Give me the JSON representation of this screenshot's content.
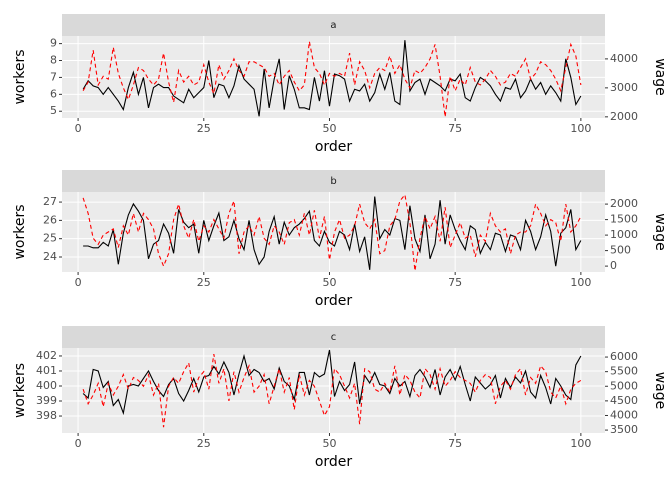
{
  "chart_data": [
    {
      "type": "line",
      "strip": "a",
      "xlabel": "order",
      "grid": true,
      "xlim": [
        -3.2,
        104.8
      ],
      "xticks": [
        0,
        25,
        50,
        75,
        100
      ],
      "ylim": [
        4.6,
        9.45
      ],
      "yticks": [
        5,
        6,
        7,
        8,
        9
      ],
      "y2lim": [
        1960,
        4790
      ],
      "y2ticks": [
        2000,
        3000,
        4000
      ],
      "x": [
        1,
        2,
        3,
        4,
        5,
        6,
        7,
        8,
        9,
        10,
        11,
        12,
        13,
        14,
        15,
        16,
        17,
        18,
        19,
        20,
        21,
        22,
        23,
        24,
        25,
        26,
        27,
        28,
        29,
        30,
        31,
        32,
        33,
        34,
        35,
        36,
        37,
        38,
        39,
        40,
        41,
        42,
        43,
        44,
        45,
        46,
        47,
        48,
        49,
        50,
        51,
        52,
        53,
        54,
        55,
        56,
        57,
        58,
        59,
        60,
        61,
        62,
        63,
        64,
        65,
        66,
        67,
        68,
        69,
        70,
        71,
        72,
        73,
        74,
        75,
        76,
        77,
        78,
        79,
        80,
        81,
        82,
        83,
        84,
        85,
        86,
        87,
        88,
        89,
        90,
        91,
        92,
        93,
        94,
        95,
        96,
        97,
        98,
        99,
        100
      ],
      "series": [
        {
          "name": "workers",
          "color": "#000000",
          "linetype": "solid",
          "values": [
            6.3,
            6.8,
            6.5,
            6.4,
            6.0,
            6.4,
            6.0,
            5.6,
            5.1,
            6.4,
            7.3,
            6.0,
            7.0,
            5.2,
            6.4,
            6.6,
            6.4,
            6.4,
            5.9,
            5.7,
            5.5,
            6.3,
            5.8,
            6.1,
            6.4,
            8.0,
            5.8,
            6.6,
            6.5,
            5.8,
            6.5,
            7.7,
            6.9,
            6.6,
            6.3,
            4.7,
            7.5,
            5.2,
            6.9,
            8.1,
            5.1,
            7.1,
            6.3,
            5.2,
            5.2,
            5.1,
            7.0,
            5.6,
            7.4,
            5.3,
            7.2,
            7.1,
            6.9,
            5.6,
            6.3,
            6.2,
            6.6,
            5.6,
            6.1,
            7.2,
            6.3,
            7.3,
            5.6,
            5.4,
            9.2,
            6.2,
            6.7,
            6.9,
            6.0,
            6.9,
            6.7,
            6.5,
            6.2,
            6.9,
            6.8,
            7.2,
            5.8,
            5.6,
            6.4,
            7.0,
            6.8,
            6.5,
            6.0,
            5.6,
            6.4,
            6.3,
            6.9,
            5.8,
            6.2,
            6.9,
            6.3,
            6.7,
            6.0,
            6.5,
            6.1,
            5.6,
            8.1,
            7.0,
            5.4,
            5.9
          ]
        },
        {
          "name": "wage",
          "color": "#ff0000",
          "linetype": "dashed",
          "axis": "y2",
          "values": [
            2900,
            3200,
            4300,
            3100,
            3400,
            3300,
            4400,
            3500,
            3000,
            2600,
            3100,
            3700,
            3600,
            3300,
            3100,
            3300,
            4200,
            3200,
            2500,
            3600,
            3200,
            3400,
            3100,
            3200,
            3800,
            3200,
            2800,
            3800,
            3300,
            3600,
            4000,
            3600,
            3400,
            3900,
            3900,
            3800,
            3700,
            3400,
            3500,
            3100,
            3400,
            3600,
            3200,
            2900,
            3100,
            4600,
            3700,
            3500,
            3100,
            3500,
            3400,
            3500,
            3400,
            4200,
            3100,
            3900,
            3600,
            3000,
            3500,
            3700,
            3600,
            4100,
            3500,
            3800,
            3300,
            3000,
            3600,
            3500,
            3700,
            4000,
            4500,
            3400,
            2000,
            3400,
            2900,
            3300,
            3100,
            3700,
            3200,
            3100,
            3300,
            3600,
            3400,
            3100,
            3200,
            3500,
            3400,
            3700,
            4000,
            3300,
            3500,
            3900,
            3800,
            3600,
            3300,
            2900,
            3700,
            4500,
            4100,
            3100
          ]
        }
      ]
    },
    {
      "type": "line",
      "strip": "b",
      "xlabel": "order",
      "grid": true,
      "xlim": [
        -3.2,
        104.8
      ],
      "xticks": [
        0,
        25,
        50,
        75,
        100
      ],
      "ylim": [
        23.18,
        27.55
      ],
      "yticks": [
        24,
        25,
        26,
        27
      ],
      "y2lim": [
        -190,
        2390
      ],
      "y2ticks": [
        0,
        500,
        1000,
        1500,
        2000
      ],
      "x": [
        1,
        2,
        3,
        4,
        5,
        6,
        7,
        8,
        9,
        10,
        11,
        12,
        13,
        14,
        15,
        16,
        17,
        18,
        19,
        20,
        21,
        22,
        23,
        24,
        25,
        26,
        27,
        28,
        29,
        30,
        31,
        32,
        33,
        34,
        35,
        36,
        37,
        38,
        39,
        40,
        41,
        42,
        43,
        44,
        45,
        46,
        47,
        48,
        49,
        50,
        51,
        52,
        53,
        54,
        55,
        56,
        57,
        58,
        59,
        60,
        61,
        62,
        63,
        64,
        65,
        66,
        67,
        68,
        69,
        70,
        71,
        72,
        73,
        74,
        75,
        76,
        77,
        78,
        79,
        80,
        81,
        82,
        83,
        84,
        85,
        86,
        87,
        88,
        89,
        90,
        91,
        92,
        93,
        94,
        95,
        96,
        97,
        98,
        99,
        100
      ],
      "series": [
        {
          "name": "workers",
          "color": "#000000",
          "linetype": "solid",
          "values": [
            24.6,
            24.6,
            24.5,
            24.5,
            24.8,
            24.6,
            25.5,
            23.6,
            25.3,
            26.3,
            26.9,
            26.5,
            26.0,
            23.9,
            24.7,
            24.9,
            25.8,
            25.3,
            24.2,
            26.6,
            25.9,
            25.6,
            25.8,
            24.2,
            26.0,
            24.9,
            25.7,
            26.4,
            24.9,
            25.1,
            26.0,
            25.0,
            24.4,
            26.0,
            24.4,
            23.6,
            24.0,
            25.4,
            26.2,
            24.7,
            25.9,
            25.2,
            25.6,
            25.8,
            26.1,
            26.5,
            24.9,
            24.6,
            25.4,
            24.8,
            24.6,
            25.4,
            25.2,
            24.4,
            25.8,
            24.3,
            25.1,
            23.3,
            27.3,
            25.0,
            25.5,
            25.2,
            26.1,
            26.0,
            24.4,
            26.8,
            25.0,
            24.3,
            26.3,
            23.9,
            24.7,
            27.1,
            24.7,
            26.3,
            25.5,
            24.9,
            24.4,
            25.7,
            25.5,
            24.2,
            24.8,
            24.4,
            25.3,
            25.2,
            24.3,
            25.2,
            25.1,
            24.4,
            26.0,
            25.4,
            24.4,
            25.1,
            26.3,
            25.4,
            23.5,
            25.3,
            25.6,
            26.6,
            24.4,
            24.9
          ]
        },
        {
          "name": "wage",
          "color": "#ff0000",
          "linetype": "dashed",
          "axis": "y2",
          "values": [
            2200,
            1700,
            900,
            700,
            1000,
            1100,
            1200,
            600,
            1300,
            1000,
            1700,
            1100,
            1700,
            1500,
            1200,
            400,
            0,
            400,
            1500,
            2000,
            1300,
            900,
            1500,
            800,
            1300,
            1100,
            1500,
            1200,
            900,
            1700,
            2100,
            400,
            1100,
            1300,
            1000,
            1600,
            900,
            700,
            1300,
            1100,
            700,
            1400,
            1500,
            1000,
            1700,
            1000,
            1800,
            900,
            1600,
            200,
            1100,
            1500,
            900,
            1000,
            1300,
            2000,
            1400,
            1200,
            1500,
            400,
            500,
            1300,
            1500,
            2100,
            2300,
            1400,
            -150,
            900,
            1600,
            1200,
            1600,
            800,
            1900,
            600,
            1000,
            1400,
            900,
            1000,
            300,
            1000,
            800,
            1700,
            1300,
            1100,
            1200,
            400,
            1000,
            1100,
            1100,
            1300,
            2000,
            1700,
            1300,
            1500,
            1400,
            800,
            2000,
            1100,
            1300,
            1600
          ]
        }
      ]
    },
    {
      "type": "line",
      "strip": "c",
      "xlabel": "order",
      "grid": true,
      "xlim": [
        -3.2,
        104.8
      ],
      "xticks": [
        0,
        25,
        50,
        75,
        100
      ],
      "ylim": [
        396.87,
        402.53
      ],
      "yticks": [
        398,
        399,
        400,
        401,
        402
      ],
      "y2lim": [
        3400,
        6310
      ],
      "y2ticks": [
        3500,
        4000,
        4500,
        5000,
        5500,
        6000
      ],
      "x": [
        1,
        2,
        3,
        4,
        5,
        6,
        7,
        8,
        9,
        10,
        11,
        12,
        13,
        14,
        15,
        16,
        17,
        18,
        19,
        20,
        21,
        22,
        23,
        24,
        25,
        26,
        27,
        28,
        29,
        30,
        31,
        32,
        33,
        34,
        35,
        36,
        37,
        38,
        39,
        40,
        41,
        42,
        43,
        44,
        45,
        46,
        47,
        48,
        49,
        50,
        51,
        52,
        53,
        54,
        55,
        56,
        57,
        58,
        59,
        60,
        61,
        62,
        63,
        64,
        65,
        66,
        67,
        68,
        69,
        70,
        71,
        72,
        73,
        74,
        75,
        76,
        77,
        78,
        79,
        80,
        81,
        82,
        83,
        84,
        85,
        86,
        87,
        88,
        89,
        90,
        91,
        92,
        93,
        94,
        95,
        96,
        97,
        98,
        99,
        100
      ],
      "series": [
        {
          "name": "workers",
          "color": "#000000",
          "linetype": "solid",
          "values": [
            399.5,
            399.2,
            401.1,
            401.0,
            399.9,
            400.3,
            398.7,
            399.1,
            398.2,
            400.0,
            400.1,
            400.0,
            400.5,
            401.0,
            400.3,
            399.7,
            399.3,
            400.1,
            400.5,
            399.5,
            399.0,
            399.7,
            400.5,
            399.6,
            400.6,
            400.7,
            401.3,
            400.8,
            401.6,
            400.9,
            399.4,
            400.8,
            402.0,
            400.7,
            401.1,
            400.9,
            400.3,
            400.5,
            399.8,
            401.2,
            400.3,
            400.0,
            399.1,
            400.9,
            400.9,
            399.4,
            400.9,
            400.6,
            400.8,
            402.4,
            399.3,
            400.3,
            399.7,
            400.1,
            401.6,
            398.8,
            400.7,
            400.2,
            400.9,
            400.1,
            400.0,
            399.5,
            400.5,
            400.0,
            400.3,
            399.3,
            400.7,
            401.1,
            400.6,
            399.9,
            401.1,
            399.4,
            400.6,
            401.1,
            400.4,
            401.3,
            400.1,
            399.0,
            400.6,
            400.2,
            399.8,
            400.1,
            400.7,
            399.2,
            400.5,
            399.9,
            400.6,
            400.2,
            401.0,
            399.6,
            399.2,
            400.7,
            399.9,
            398.8,
            400.5,
            400.0,
            399.4,
            399.1,
            401.4,
            402.0
          ]
        },
        {
          "name": "wage",
          "color": "#ff0000",
          "linetype": "dashed",
          "axis": "y2",
          "values": [
            4900,
            4400,
            4700,
            5100,
            4300,
            5100,
            4700,
            5000,
            5400,
            4900,
            5300,
            5200,
            5000,
            5400,
            4700,
            5100,
            3600,
            5000,
            5300,
            5100,
            5500,
            5800,
            4800,
            5300,
            5500,
            4900,
            6100,
            5100,
            5600,
            4500,
            5500,
            4800,
            5300,
            5700,
            4800,
            5000,
            5400,
            4400,
            5000,
            5600,
            4800,
            5300,
            4200,
            5400,
            4700,
            5200,
            5000,
            4500,
            4000,
            4300,
            5600,
            5400,
            5000,
            4600,
            5100,
            3700,
            5600,
            5500,
            4900,
            4800,
            5100,
            4800,
            5700,
            4700,
            5400,
            5200,
            4800,
            4600,
            5600,
            5400,
            4900,
            5600,
            5000,
            5200,
            5500,
            5300,
            5200,
            5100,
            4800,
            5200,
            5400,
            5300,
            4400,
            5000,
            5200,
            4900,
            5400,
            5600,
            4700,
            5300,
            5100,
            5700,
            5500,
            4800,
            4600,
            5000,
            4400,
            4900,
            5100,
            5200
          ]
        }
      ]
    }
  ]
}
